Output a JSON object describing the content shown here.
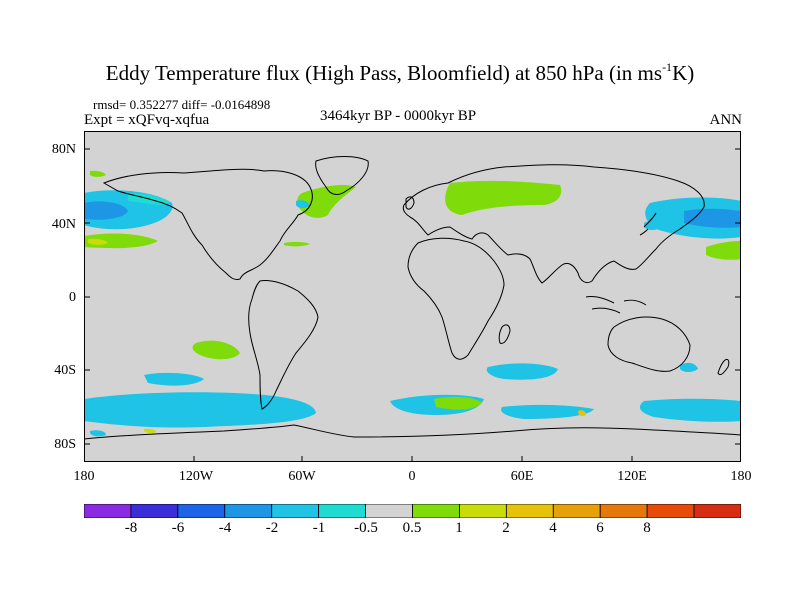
{
  "title": {
    "main": "Eddy Temperature flux (High Pass, Bloomfield) at 850 hPa (in ms",
    "sup": "-1",
    "tail": "K)"
  },
  "stats": "rmsd= 0.352277 diff= -0.0164898",
  "experiment": "Expt = xQFvq-xqfua",
  "period": "3464kyr BP - 0000kyr BP",
  "season": "ANN",
  "lat_labels": [
    "80N",
    "40N",
    "0",
    "40S",
    "80S"
  ],
  "lon_labels": [
    "180",
    "120W",
    "60W",
    "0",
    "60E",
    "120E",
    "180"
  ],
  "colorbar": {
    "colors": [
      "#8a2be2",
      "#3a2fd8",
      "#1e64e6",
      "#1e96e6",
      "#1ec3e6",
      "#1edcd2",
      "#d3d3d3",
      "#7fdc0a",
      "#c8dc0a",
      "#e6c30a",
      "#e6a00a",
      "#e6780a",
      "#e64b0a",
      "#d72d14"
    ],
    "labels": [
      "-8",
      "-6",
      "-4",
      "-2",
      "-1",
      "-0.5",
      "0.5",
      "1",
      "2",
      "4",
      "6",
      "8"
    ]
  }
}
